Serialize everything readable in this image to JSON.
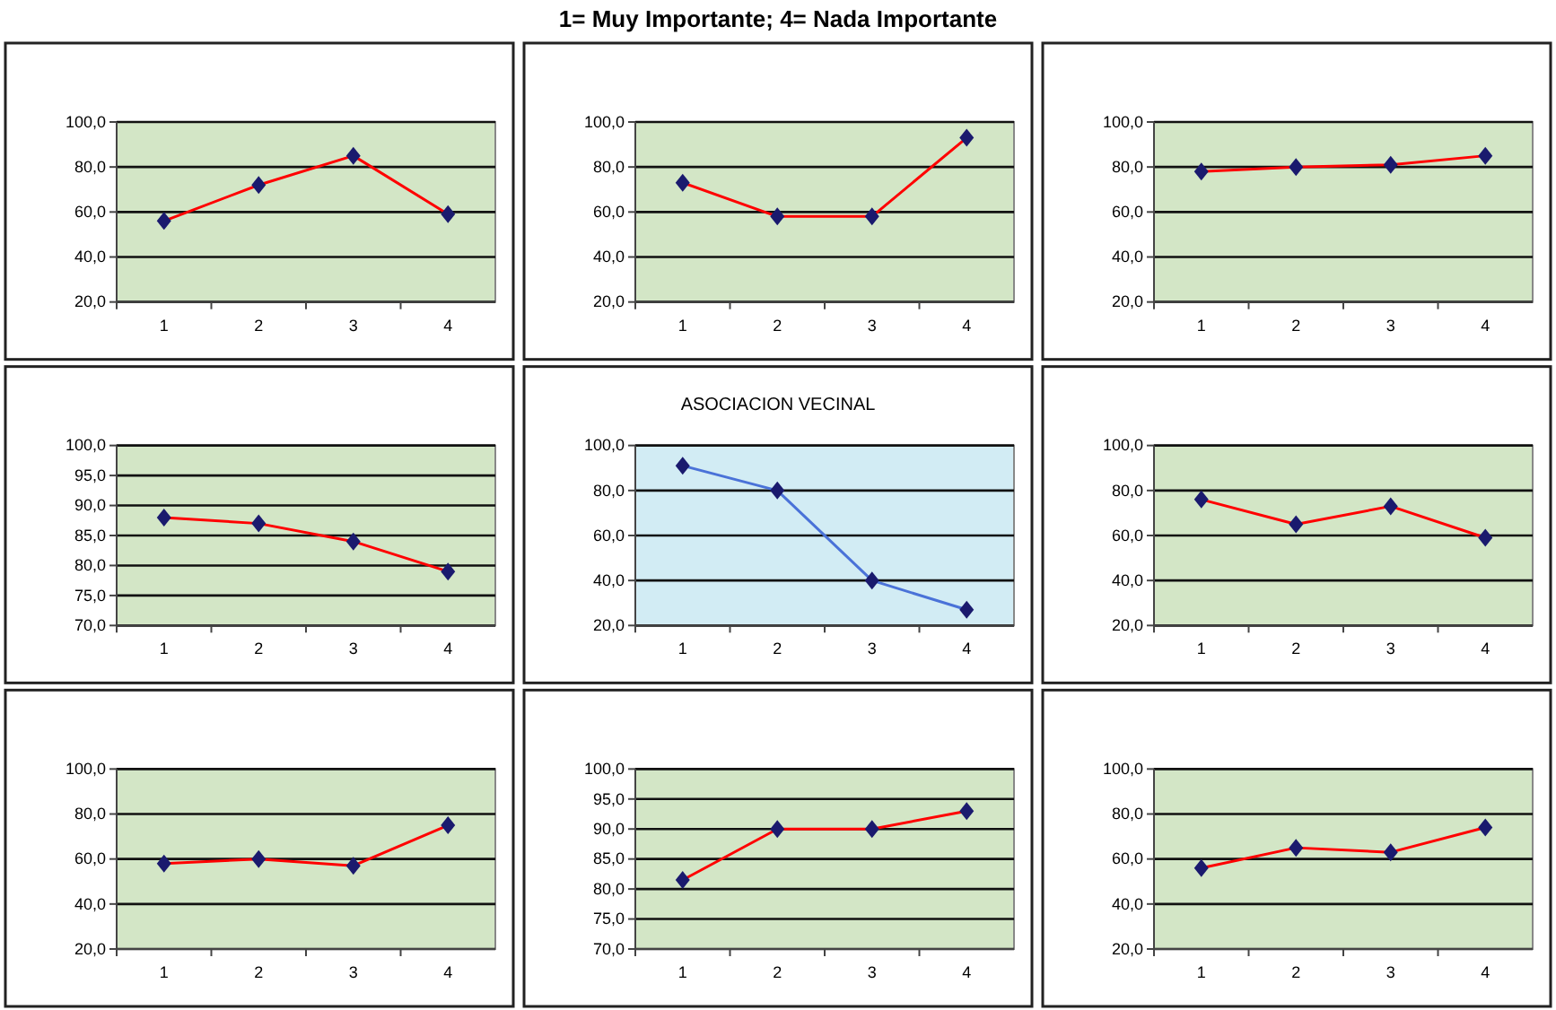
{
  "chart_data": [
    {
      "type": "line",
      "annotations": [
        "1= Muy Importante; 4= Nada Importante"
      ],
      "categories": [
        "1",
        "2",
        "3",
        "4"
      ],
      "series": [
        {
          "color": "#ff0000",
          "values": [
            56,
            72,
            85,
            59
          ]
        }
      ],
      "ylim": [
        20,
        100
      ],
      "yticks": [
        {
          "value": 20,
          "label": "20,0"
        },
        {
          "value": 40,
          "label": "40,0"
        },
        {
          "value": 60,
          "label": "60,0"
        },
        {
          "value": 80,
          "label": "80,0"
        },
        {
          "value": 100,
          "label": "100,0"
        }
      ],
      "grid": "y",
      "marker": "diamond"
    },
    {
      "type": "line",
      "categories": [
        "1",
        "2",
        "3",
        "4"
      ],
      "series": [
        {
          "color": "#ff0000",
          "values": [
            73,
            58,
            58,
            93
          ]
        }
      ],
      "ylim": [
        20,
        100
      ],
      "yticks": [
        {
          "value": 20,
          "label": "20,0"
        },
        {
          "value": 40,
          "label": "40,0"
        },
        {
          "value": 60,
          "label": "60,0"
        },
        {
          "value": 80,
          "label": "80,0"
        },
        {
          "value": 100,
          "label": "100,0"
        }
      ],
      "grid": "y",
      "marker": "diamond"
    },
    {
      "type": "line",
      "categories": [
        "1",
        "2",
        "3",
        "4"
      ],
      "series": [
        {
          "color": "#ff0000",
          "values": [
            78,
            80,
            81,
            85
          ]
        }
      ],
      "ylim": [
        20,
        100
      ],
      "yticks": [
        {
          "value": 20,
          "label": "20,0"
        },
        {
          "value": 40,
          "label": "40,0"
        },
        {
          "value": 60,
          "label": "60,0"
        },
        {
          "value": 80,
          "label": "80,0"
        },
        {
          "value": 100,
          "label": "100,0"
        }
      ],
      "grid": "y",
      "marker": "diamond"
    },
    {
      "type": "line",
      "categories": [
        "1",
        "2",
        "3",
        "4"
      ],
      "series": [
        {
          "color": "#ff0000",
          "values": [
            88,
            87,
            84,
            79
          ]
        }
      ],
      "ylim": [
        70,
        100
      ],
      "yticks": [
        {
          "value": 70,
          "label": "70,0"
        },
        {
          "value": 75,
          "label": "75,0"
        },
        {
          "value": 80,
          "label": "80,0"
        },
        {
          "value": 85,
          "label": "85,0"
        },
        {
          "value": 90,
          "label": "90,0"
        },
        {
          "value": 95,
          "label": "95,0"
        },
        {
          "value": 100,
          "label": "100,0"
        }
      ],
      "grid": "y",
      "marker": "diamond"
    },
    {
      "type": "line",
      "title": "ASOCIACION VECINAL",
      "categories": [
        "1",
        "2",
        "3",
        "4"
      ],
      "series": [
        {
          "color": "#4a72d8",
          "values": [
            91,
            80,
            40,
            27
          ]
        }
      ],
      "ylim": [
        20,
        100
      ],
      "yticks": [
        {
          "value": 20,
          "label": "20,0"
        },
        {
          "value": 40,
          "label": "40,0"
        },
        {
          "value": 60,
          "label": "60,0"
        },
        {
          "value": 80,
          "label": "80,0"
        },
        {
          "value": 100,
          "label": "100,0"
        }
      ],
      "grid": "y",
      "marker": "diamond"
    },
    {
      "type": "line",
      "categories": [
        "1",
        "2",
        "3",
        "4"
      ],
      "series": [
        {
          "color": "#ff0000",
          "values": [
            76,
            65,
            73,
            59
          ]
        }
      ],
      "ylim": [
        20,
        100
      ],
      "yticks": [
        {
          "value": 20,
          "label": "20,0"
        },
        {
          "value": 40,
          "label": "40,0"
        },
        {
          "value": 60,
          "label": "60,0"
        },
        {
          "value": 80,
          "label": "80,0"
        },
        {
          "value": 100,
          "label": "100,0"
        }
      ],
      "grid": "y",
      "marker": "diamond"
    },
    {
      "type": "line",
      "categories": [
        "1",
        "2",
        "3",
        "4"
      ],
      "series": [
        {
          "color": "#ff0000",
          "values": [
            58,
            60,
            57,
            75
          ]
        }
      ],
      "ylim": [
        20,
        100
      ],
      "yticks": [
        {
          "value": 20,
          "label": "20,0"
        },
        {
          "value": 40,
          "label": "40,0"
        },
        {
          "value": 60,
          "label": "60,0"
        },
        {
          "value": 80,
          "label": "80,0"
        },
        {
          "value": 100,
          "label": "100,0"
        }
      ],
      "grid": "y",
      "marker": "diamond"
    },
    {
      "type": "line",
      "categories": [
        "1",
        "2",
        "3",
        "4"
      ],
      "series": [
        {
          "color": "#ff0000",
          "values": [
            81.5,
            90,
            90,
            93
          ]
        }
      ],
      "ylim": [
        70,
        100
      ],
      "yticks": [
        {
          "value": 70,
          "label": "70,0"
        },
        {
          "value": 75,
          "label": "75,0"
        },
        {
          "value": 80,
          "label": "80,0"
        },
        {
          "value": 85,
          "label": "85,0"
        },
        {
          "value": 90,
          "label": "90,0"
        },
        {
          "value": 95,
          "label": "95,0"
        },
        {
          "value": 100,
          "label": "100,0"
        }
      ],
      "grid": "y",
      "marker": "diamond"
    },
    {
      "type": "line",
      "categories": [
        "1",
        "2",
        "3",
        "4"
      ],
      "series": [
        {
          "color": "#ff0000",
          "values": [
            56,
            65,
            63,
            74
          ]
        }
      ],
      "ylim": [
        20,
        100
      ],
      "yticks": [
        {
          "value": 20,
          "label": "20,0"
        },
        {
          "value": 40,
          "label": "40,0"
        },
        {
          "value": 60,
          "label": "60,0"
        },
        {
          "value": 80,
          "label": "80,0"
        },
        {
          "value": 100,
          "label": "100,0"
        }
      ],
      "grid": "y",
      "marker": "diamond"
    }
  ]
}
